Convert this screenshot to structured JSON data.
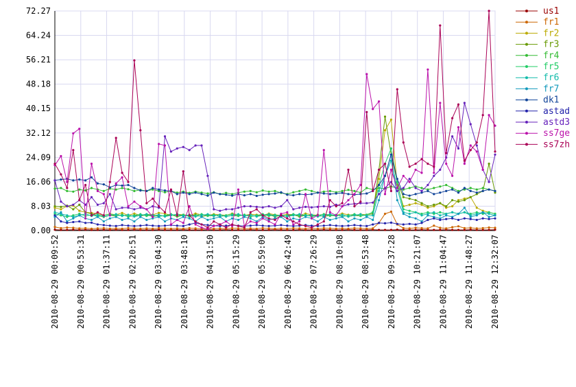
{
  "chart_data": {
    "type": "line",
    "title": "",
    "xlabel": "",
    "ylabel": "",
    "ylim": [
      0,
      72.27
    ],
    "grid": true,
    "legend_position": "right",
    "y_ticks": [
      "0.00",
      "8.03",
      "16.06",
      "24.09",
      "32.12",
      "40.15",
      "48.18",
      "56.21",
      "64.24",
      "72.27"
    ],
    "x_ticks": [
      "2010-08-29 00:09:52",
      "2010-08-29 00:53:31",
      "2010-08-29 01:37:11",
      "2010-08-29 02:20:51",
      "2010-08-29 03:04:30",
      "2010-08-29 03:48:10",
      "2010-08-29 04:31:50",
      "2010-08-29 05:15:29",
      "2010-08-29 05:59:09",
      "2010-08-29 06:42:49",
      "2010-08-29 07:26:29",
      "2010-08-29 08:10:08",
      "2010-08-29 08:53:48",
      "2010-08-29 09:37:28",
      "2010-08-29 10:21:07",
      "2010-08-29 11:04:47",
      "2010-08-29 11:48:27",
      "2010-08-29 12:32:07"
    ],
    "series": [
      {
        "name": "us1",
        "color": "#990000",
        "values": [
          0.3,
          0.2,
          0.2,
          0.3,
          0.2,
          0.3,
          0.2,
          0.2,
          0.3,
          0.2,
          0.3,
          0.2,
          0.2,
          0.3,
          0.2,
          0.2,
          0.2,
          0.3,
          0.2,
          0.2,
          0.2,
          0.3,
          0.2,
          0.2,
          0.2,
          0.3,
          0.2,
          0.2,
          0.3,
          0.2,
          0.2,
          0.2,
          0.3,
          0.2,
          0.2,
          0.2,
          0.3,
          0.2,
          0.2,
          0.2,
          0.3,
          0.2,
          0.2,
          0.2,
          0.3,
          0.2,
          0.2,
          0.2,
          0.3,
          0.2,
          0.2,
          0.2,
          0.3,
          0.2,
          0.2,
          0.2,
          0.3,
          0.2,
          0.2,
          0.2,
          0.3,
          0.2,
          0.2,
          0.2,
          0.3,
          0.2,
          0.2,
          0.2,
          0.3,
          0.2,
          0.2,
          0.2,
          0.3
        ]
      },
      {
        "name": "fr1",
        "color": "#cc6600",
        "values": [
          1.2,
          0.8,
          1.0,
          0.9,
          0.7,
          0.8,
          0.6,
          0.7,
          0.8,
          0.6,
          0.7,
          0.6,
          0.8,
          0.7,
          0.6,
          0.7,
          0.6,
          0.8,
          0.7,
          0.6,
          0.7,
          0.6,
          0.8,
          0.7,
          0.6,
          0.7,
          0.6,
          0.7,
          0.6,
          0.8,
          0.7,
          0.6,
          0.7,
          0.6,
          0.8,
          0.7,
          0.6,
          0.7,
          0.6,
          0.8,
          0.7,
          0.6,
          0.7,
          0.6,
          0.8,
          0.7,
          0.6,
          0.7,
          0.6,
          0.8,
          0.7,
          0.6,
          0.7,
          2.5,
          5.5,
          6.2,
          2.0,
          0.8,
          0.7,
          0.9,
          0.8,
          0.7,
          1.6,
          0.9,
          0.7,
          1.1,
          1.4,
          0.8,
          0.9,
          0.7,
          0.8,
          1.0,
          0.9
        ]
      },
      {
        "name": "fr2",
        "color": "#bbaa00",
        "values": [
          7.5,
          7.0,
          8.0,
          8.2,
          6.5,
          6.0,
          5.8,
          5.5,
          5.0,
          5.5,
          5.2,
          5.8,
          5.0,
          5.6,
          5.0,
          5.4,
          5.2,
          5.8,
          5.6,
          5.0,
          5.4,
          5.2,
          5.0,
          5.6,
          5.2,
          5.0,
          5.4,
          5.2,
          5.0,
          5.6,
          5.2,
          5.0,
          5.4,
          5.2,
          5.0,
          5.6,
          5.2,
          5.0,
          5.4,
          5.2,
          5.0,
          5.6,
          5.2,
          5.0,
          5.4,
          5.2,
          5.0,
          5.6,
          5.2,
          5.0,
          5.4,
          5.2,
          6.0,
          17.0,
          33.0,
          36.5,
          15.0,
          8.0,
          8.5,
          9.0,
          8.5,
          7.5,
          8.0,
          9.0,
          7.5,
          8.0,
          10.0,
          10.5,
          11.0,
          7.5,
          6.5,
          6.0,
          5.5
        ]
      },
      {
        "name": "fr3",
        "color": "#669900",
        "values": [
          8.0,
          7.8,
          8.2,
          7.0,
          8.5,
          6.0,
          5.5,
          5.0,
          4.5,
          5.0,
          4.8,
          5.2,
          4.6,
          5.0,
          4.8,
          5.2,
          4.6,
          5.0,
          4.8,
          5.2,
          4.6,
          5.0,
          4.8,
          5.2,
          4.6,
          5.0,
          4.8,
          5.2,
          4.6,
          5.0,
          4.8,
          5.2,
          4.6,
          5.0,
          4.8,
          5.2,
          4.6,
          5.0,
          4.8,
          5.2,
          4.6,
          5.0,
          4.8,
          5.2,
          4.6,
          5.0,
          4.8,
          5.2,
          4.6,
          5.0,
          4.8,
          5.2,
          5.5,
          20.0,
          37.5,
          25.0,
          16.0,
          11.0,
          10.5,
          10.0,
          9.0,
          8.0,
          8.5,
          9.0,
          8.0,
          10.0,
          9.5,
          10.0,
          11.0,
          12.0,
          13.0,
          22.0,
          12.5
        ]
      },
      {
        "name": "fr4",
        "color": "#33bb33",
        "values": [
          13.8,
          14.0,
          13.0,
          12.8,
          13.5,
          13.2,
          14.0,
          13.5,
          13.0,
          13.8,
          13.5,
          14.0,
          13.6,
          13.0,
          13.4,
          13.0,
          13.5,
          13.0,
          12.6,
          13.0,
          12.5,
          12.8,
          12.4,
          12.8,
          12.5,
          12.2,
          12.6,
          12.0,
          12.4,
          12.0,
          12.5,
          12.8,
          13.0,
          12.6,
          13.2,
          12.8,
          13.0,
          12.4,
          12.0,
          12.6,
          13.0,
          13.5,
          13.0,
          12.5,
          12.8,
          13.0,
          12.6,
          13.0,
          13.4,
          13.0,
          12.5,
          14.0,
          13.5,
          14.0,
          13.8,
          14.5,
          14.0,
          13.5,
          14.0,
          14.5,
          14.0,
          13.5,
          14.0,
          14.5,
          15.0,
          14.0,
          13.0,
          13.5,
          14.0,
          13.5,
          14.0,
          13.5,
          13.0
        ]
      },
      {
        "name": "fr5",
        "color": "#22cc66",
        "values": [
          5.5,
          5.0,
          4.5,
          5.0,
          5.5,
          4.8,
          5.2,
          4.6,
          5.0,
          5.4,
          4.8,
          5.2,
          4.6,
          5.0,
          5.4,
          4.8,
          5.2,
          4.6,
          5.0,
          5.4,
          4.8,
          5.2,
          4.6,
          5.0,
          5.4,
          4.8,
          5.2,
          4.6,
          5.0,
          5.4,
          4.8,
          5.2,
          4.6,
          5.0,
          5.4,
          4.8,
          5.2,
          4.6,
          5.0,
          5.4,
          4.8,
          5.2,
          4.6,
          5.0,
          5.4,
          4.8,
          5.2,
          4.6,
          5.0,
          5.4,
          4.8,
          5.2,
          6.0,
          15.0,
          22.0,
          27.0,
          16.0,
          7.0,
          6.5,
          6.0,
          5.5,
          6.0,
          5.5,
          6.0,
          5.5,
          6.0,
          5.5,
          6.0,
          5.5,
          6.0,
          5.5,
          6.0,
          5.5
        ]
      },
      {
        "name": "fr6",
        "color": "#11bbaa",
        "values": [
          6.0,
          5.5,
          5.0,
          4.5,
          5.0,
          5.5,
          4.8,
          5.2,
          4.6,
          5.0,
          5.4,
          4.8,
          5.2,
          4.6,
          5.0,
          5.4,
          4.8,
          5.2,
          4.6,
          5.0,
          5.4,
          4.8,
          5.2,
          4.6,
          5.0,
          5.4,
          4.8,
          5.2,
          4.6,
          5.0,
          5.4,
          4.8,
          5.2,
          4.6,
          5.0,
          5.4,
          4.8,
          5.2,
          4.6,
          5.0,
          5.4,
          4.8,
          5.2,
          4.6,
          5.0,
          5.4,
          4.8,
          5.2,
          4.6,
          5.0,
          5.4,
          4.8,
          5.0,
          13.0,
          18.0,
          23.0,
          14.0,
          6.0,
          5.5,
          6.0,
          5.0,
          5.5,
          6.0,
          5.0,
          5.5,
          6.0,
          5.5,
          6.0,
          5.0,
          5.5,
          6.0,
          5.5,
          5.0
        ]
      },
      {
        "name": "fr7",
        "color": "#1199bb",
        "values": [
          4.5,
          6.0,
          3.0,
          4.0,
          5.0,
          4.0,
          3.5,
          4.5,
          3.0,
          4.0,
          4.5,
          3.5,
          4.0,
          3.0,
          4.5,
          3.5,
          4.0,
          4.5,
          3.0,
          4.0,
          3.5,
          4.5,
          4.0,
          3.0,
          4.5,
          3.5,
          4.0,
          4.5,
          3.0,
          4.0,
          3.5,
          4.5,
          4.0,
          3.0,
          4.5,
          3.5,
          4.0,
          4.5,
          3.0,
          4.0,
          3.5,
          4.5,
          4.0,
          3.0,
          4.5,
          3.5,
          4.0,
          4.5,
          3.0,
          4.0,
          3.5,
          4.5,
          3.5,
          10.0,
          18.0,
          25.0,
          10.0,
          5.5,
          4.5,
          4.0,
          3.0,
          5.0,
          4.5,
          4.0,
          5.0,
          4.5,
          5.5,
          7.5,
          4.5,
          5.0,
          6.0,
          4.5,
          5.0
        ]
      },
      {
        "name": "dk1",
        "color": "#114499",
        "values": [
          16.5,
          16.8,
          17.0,
          16.5,
          16.8,
          16.5,
          17.5,
          15.5,
          15.2,
          14.2,
          15.0,
          14.8,
          15.0,
          14.0,
          13.2,
          13.0,
          14.0,
          13.5,
          13.2,
          13.0,
          12.0,
          12.5,
          12.0,
          12.5,
          12.0,
          11.5,
          12.5,
          12.0,
          11.8,
          11.5,
          12.0,
          11.6,
          12.0,
          11.4,
          11.8,
          12.0,
          12.2,
          12.6,
          11.8,
          11.6,
          12.0,
          11.8,
          12.0,
          12.5,
          12.2,
          12.0,
          12.2,
          12.4,
          12.0,
          11.8,
          12.0,
          12.2,
          13.0,
          15.0,
          18.0,
          25.0,
          17.0,
          12.0,
          11.5,
          12.0,
          12.5,
          13.0,
          12.0,
          12.5,
          13.0,
          13.5,
          12.5,
          14.0,
          13.0,
          12.5,
          13.0,
          13.5,
          13.0
        ]
      },
      {
        "name": "astad",
        "color": "#2222aa",
        "values": [
          5.0,
          3.0,
          2.5,
          2.8,
          3.0,
          2.5,
          2.6,
          2.0,
          1.8,
          1.6,
          1.5,
          1.8,
          1.6,
          1.5,
          1.6,
          1.8,
          1.6,
          1.5,
          1.6,
          1.8,
          1.6,
          1.5,
          2.0,
          2.5,
          2.0,
          1.8,
          1.6,
          1.5,
          1.6,
          1.8,
          1.6,
          1.5,
          1.6,
          1.8,
          1.6,
          1.5,
          1.6,
          1.8,
          1.6,
          1.5,
          1.6,
          1.8,
          1.6,
          1.5,
          1.6,
          1.8,
          1.6,
          1.5,
          1.6,
          1.8,
          1.6,
          1.5,
          2.0,
          2.5,
          2.4,
          2.6,
          2.2,
          2.0,
          2.2,
          2.0,
          2.5,
          3.5,
          4.0,
          3.5,
          3.8,
          4.0,
          3.5,
          4.0,
          3.8,
          3.5,
          4.0,
          3.8,
          4.0
        ]
      },
      {
        "name": "astd3",
        "color": "#6622bb",
        "values": [
          16.5,
          9.5,
          8.0,
          8.5,
          10.0,
          8.5,
          11.0,
          8.5,
          9.0,
          12.0,
          7.0,
          7.5,
          7.5,
          7.0,
          7.5,
          7.0,
          8.0,
          7.5,
          31.0,
          26.0,
          27.0,
          27.5,
          26.5,
          28.0,
          28.0,
          18.0,
          7.0,
          6.5,
          7.0,
          7.0,
          7.5,
          8.0,
          8.0,
          7.8,
          7.6,
          8.0,
          7.5,
          8.0,
          10.0,
          7.0,
          7.5,
          7.8,
          7.6,
          7.8,
          8.0,
          7.8,
          8.5,
          8.0,
          8.6,
          8.8,
          9.0,
          9.0,
          9.2,
          12.0,
          14.0,
          16.0,
          13.0,
          14.0,
          17.0,
          14.0,
          13.0,
          15.0,
          18.0,
          20.0,
          24.0,
          31.0,
          27.0,
          42.0,
          35.0,
          28.0,
          20.0,
          16.0,
          25.0
        ]
      },
      {
        "name": "ss7ge",
        "color": "#bb11aa",
        "values": [
          21.5,
          24.5,
          16.0,
          32.0,
          33.5,
          4.0,
          22.0,
          13.0,
          12.0,
          5.0,
          15.5,
          17.5,
          8.0,
          9.5,
          8.0,
          7.0,
          4.5,
          28.5,
          28.0,
          2.0,
          3.5,
          2.5,
          8.0,
          2.0,
          1.0,
          0.5,
          1.5,
          2.0,
          3.0,
          1.5,
          13.5,
          1.5,
          3.0,
          2.5,
          4.0,
          3.0,
          2.0,
          5.5,
          6.0,
          2.0,
          3.0,
          12.0,
          4.0,
          5.0,
          26.5,
          6.0,
          5.0,
          8.0,
          10.0,
          12.0,
          15.0,
          51.5,
          40.0,
          42.5,
          12.0,
          20.0,
          14.0,
          18.0,
          16.0,
          20.0,
          19.0,
          53.0,
          19.0,
          42.0,
          22.0,
          18.0,
          34.0,
          22.0,
          28.0,
          26.0,
          20.0,
          38.0,
          34.5
        ]
      },
      {
        "name": "ss7zh",
        "color": "#aa0055",
        "values": [
          22.0,
          18.5,
          14.0,
          26.5,
          10.0,
          15.0,
          5.0,
          6.0,
          5.0,
          16.0,
          30.5,
          19.0,
          16.0,
          56.0,
          33.0,
          9.0,
          10.5,
          8.0,
          6.0,
          13.5,
          5.0,
          19.5,
          5.0,
          3.0,
          2.0,
          1.0,
          3.0,
          2.0,
          1.0,
          2.0,
          1.5,
          1.0,
          6.0,
          7.0,
          5.0,
          4.0,
          3.5,
          5.0,
          4.0,
          3.0,
          2.0,
          1.5,
          1.0,
          2.0,
          3.0,
          10.0,
          8.0,
          9.0,
          20.0,
          8.0,
          9.5,
          39.0,
          13.0,
          20.0,
          22.0,
          13.0,
          46.5,
          29.0,
          21.0,
          22.0,
          23.5,
          22.0,
          21.0,
          67.5,
          25.5,
          37.0,
          41.5,
          23.0,
          26.5,
          29.0,
          38.0,
          72.3,
          26.0
        ]
      }
    ]
  }
}
